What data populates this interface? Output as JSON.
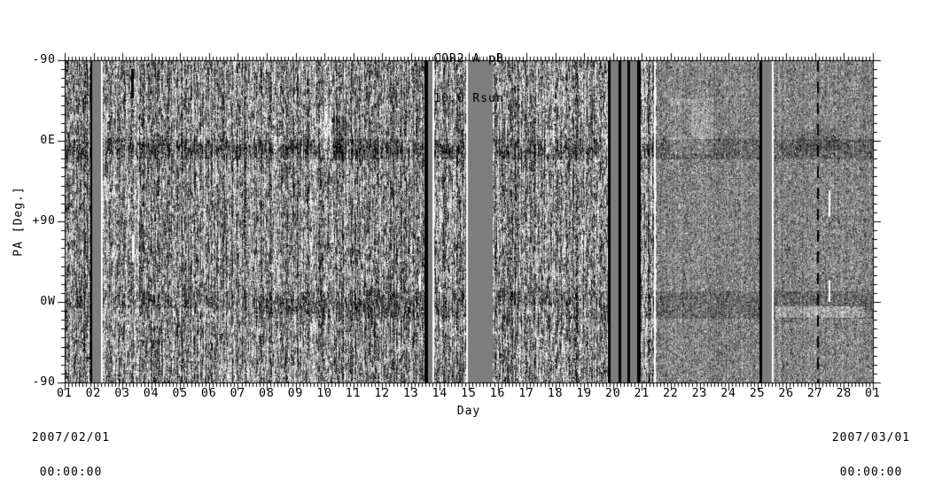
{
  "page": {
    "background": "#ffffff",
    "foreground": "#000000"
  },
  "chart_data": {
    "type": "heatmap",
    "title": "COR2 A pB",
    "subtitle": "10.0 Rsun",
    "xlabel": "Day",
    "ylabel": "PA [Deg.]",
    "colormap": "grayscale running-difference",
    "x_tick_labels": [
      "01",
      "02",
      "03",
      "04",
      "05",
      "06",
      "07",
      "08",
      "09",
      "10",
      "11",
      "12",
      "13",
      "14",
      "15",
      "16",
      "17",
      "18",
      "19",
      "20",
      "21",
      "22",
      "23",
      "24",
      "25",
      "26",
      "27",
      "28",
      "01"
    ],
    "y_tick_labels": [
      "-90",
      "0E",
      "+90",
      "0W",
      "-90"
    ],
    "x_minor_ticks_per_day": 8,
    "y_minor_tick_deg": 10,
    "x_range_days": [
      1,
      29
    ],
    "pa_range_deg": [
      -90,
      270
    ],
    "x_start": {
      "date": "2007/02/01",
      "time": "00:00:00"
    },
    "x_end": {
      "date": "2007/03/01",
      "time": "00:00:00"
    },
    "legend": "none",
    "grid": "off",
    "image": {
      "frame_color": "#000000",
      "gap_fill": "#7d7d7d",
      "mean_gray": "#858585",
      "texture_smooth_after_day": 21.48,
      "data_gaps": [
        {
          "style": "black",
          "days": [
            1.89,
            1.95
          ]
        },
        {
          "style": "gray",
          "days": [
            1.95,
            2.26
          ]
        },
        {
          "style": "white",
          "days": [
            2.26,
            2.31
          ]
        },
        {
          "style": "black",
          "days": [
            13.46,
            13.58
          ]
        },
        {
          "style": "gray",
          "days": [
            13.58,
            13.74
          ]
        },
        {
          "style": "white",
          "days": [
            13.74,
            13.79
          ]
        },
        {
          "style": "white",
          "days": [
            14.91,
            14.97
          ]
        },
        {
          "style": "gray",
          "days": [
            14.97,
            15.83
          ]
        },
        {
          "style": "black",
          "days": [
            19.82,
            19.91
          ]
        },
        {
          "style": "gray",
          "days": [
            19.91,
            20.19
          ]
        },
        {
          "style": "black",
          "days": [
            20.19,
            20.28
          ]
        },
        {
          "style": "gray",
          "days": [
            20.28,
            20.49
          ]
        },
        {
          "style": "black",
          "days": [
            20.49,
            20.59
          ]
        },
        {
          "style": "gray",
          "days": [
            20.59,
            20.83
          ]
        },
        {
          "style": "black",
          "days": [
            20.83,
            20.96
          ]
        },
        {
          "style": "white",
          "days": [
            21.42,
            21.48
          ]
        },
        {
          "style": "black",
          "days": [
            25.07,
            25.16
          ]
        },
        {
          "style": "gray",
          "days": [
            25.16,
            25.5
          ]
        },
        {
          "style": "white",
          "days": [
            25.5,
            25.55
          ]
        }
      ],
      "dashes": [
        {
          "style": "black",
          "day": 27.06,
          "pa": [
            -90,
            270
          ],
          "pattern": [
            13,
            11
          ],
          "width": 2
        },
        {
          "style": "black",
          "day": 3.3,
          "pa": [
            -80,
            -47
          ],
          "width": 3
        },
        {
          "style": "white",
          "day": 3.34,
          "pa": [
            105,
            135
          ],
          "width": 2
        },
        {
          "style": "white",
          "day": 13.28,
          "pa": [
            148,
            168
          ],
          "width": 2
        },
        {
          "style": "white",
          "day": 27.46,
          "pa": [
            55,
            85
          ],
          "width": 2
        },
        {
          "style": "white",
          "day": 27.46,
          "pa": [
            155,
            180
          ],
          "width": 2
        }
      ],
      "bands": [
        {
          "name": "streamer-belt-east",
          "pa": [
            -2,
            20
          ],
          "days": [
            1,
            29
          ],
          "delta": -0.12
        },
        {
          "name": "streamer-belt-east-core",
          "pa": [
            3,
            14
          ],
          "days": [
            2.3,
            21.4
          ],
          "delta": -0.09
        },
        {
          "name": "streamer-belt-west",
          "pa": [
            168,
            198
          ],
          "days": [
            1,
            29
          ],
          "delta": -0.1
        },
        {
          "name": "streamer-belt-west-core",
          "pa": [
            176,
            192
          ],
          "days": [
            7.5,
            14
          ],
          "delta": -0.07
        }
      ],
      "features": [
        {
          "name": "cme-front-day10",
          "days": [
            9.82,
            10.22
          ],
          "pa": [
            -40,
            18
          ],
          "delta": 0.3
        },
        {
          "name": "cme-wake-day10",
          "days": [
            10.22,
            10.75
          ],
          "pa": [
            -28,
            22
          ],
          "delta": -0.2
        },
        {
          "name": "bright-cloud-day22",
          "days": [
            21.95,
            23.45
          ],
          "pa": [
            -48,
            14
          ],
          "delta": 0.1
        },
        {
          "name": "dark-arcs-day22",
          "days": [
            21.95,
            22.7
          ],
          "pa": [
            -40,
            -4
          ],
          "delta": -0.09
        },
        {
          "name": "west-streak-day26",
          "days": [
            25.6,
            28.7
          ],
          "pa": [
            184,
            197
          ],
          "delta": 0.22
        },
        {
          "name": "west-streak-day1",
          "days": [
            1.15,
            7.6
          ],
          "pa": [
            186,
            199
          ],
          "delta": 0.12
        },
        {
          "name": "west-streak-day16",
          "days": [
            16.0,
            18.6
          ],
          "pa": [
            183,
            196
          ],
          "delta": 0.13
        },
        {
          "name": "east-blob-day8",
          "days": [
            8.2,
            8.5
          ],
          "pa": [
            -5,
            12
          ],
          "delta": 0.2
        },
        {
          "name": "east-blob-day12",
          "days": [
            12.7,
            13.0
          ],
          "pa": [
            -6,
            16
          ],
          "delta": 0.18
        },
        {
          "name": "east-blob-day17",
          "days": [
            17.65,
            17.95
          ],
          "pa": [
            -12,
            14
          ],
          "delta": 0.22
        },
        {
          "name": "east-blob-day19",
          "days": [
            19.55,
            19.8
          ],
          "pa": [
            -8,
            16
          ],
          "delta": 0.25
        },
        {
          "name": "east-dark-day26",
          "days": [
            26.3,
            27.9
          ],
          "pa": [
            -14,
            10
          ],
          "delta": -0.08
        }
      ]
    }
  }
}
